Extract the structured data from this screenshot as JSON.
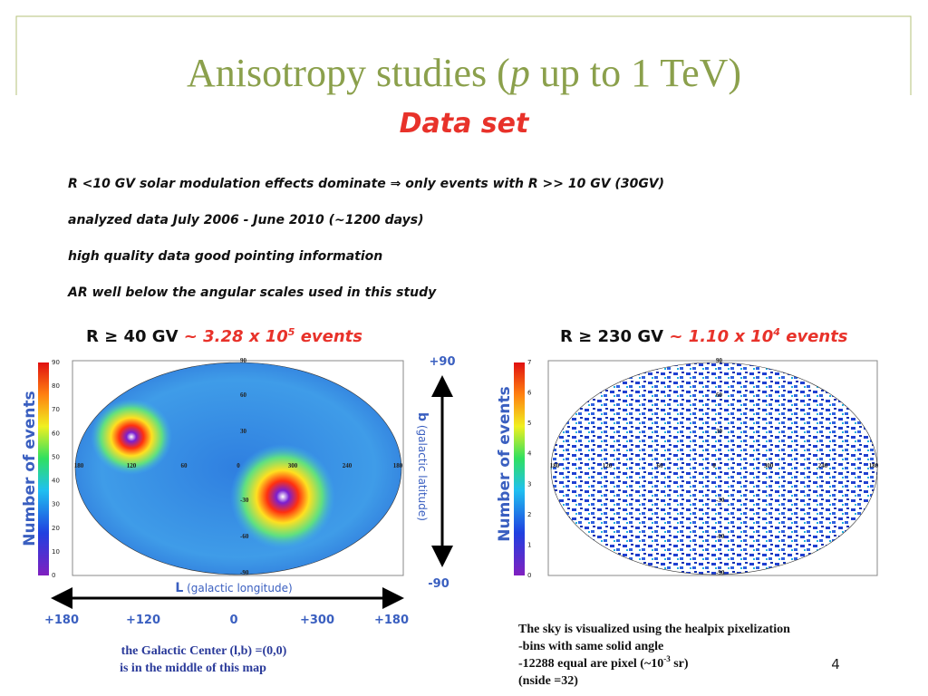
{
  "header": {
    "title": [
      "Anisotropy studies (",
      "p",
      " up to 1 TeV)"
    ],
    "subtitle": "Data set"
  },
  "bullets": [
    "R <10 GV solar modulation effects dominate ⇒ only events with R >>  10 GV (30GV)",
    "analyzed data July 2006 - June 2010 (~1200 days)",
    "high quality data good pointing information",
    "AR well below the angular scales used in this study"
  ],
  "left_map": {
    "heading": [
      "R ≥ 40 GV",
      "~",
      "3.28 x 10",
      "5",
      "events"
    ],
    "colorbar_label": "Number of events",
    "colorbar_ticks": [
      "0",
      "10",
      "20",
      "30",
      "40",
      "50",
      "60",
      "70",
      "80",
      "90"
    ],
    "lat_labels": [
      "90",
      "60",
      "30",
      "-30",
      "-60",
      "-90"
    ],
    "lon_labels": [
      "180",
      "120",
      "60",
      "0",
      "300",
      "240",
      "180"
    ]
  },
  "right_map": {
    "heading": [
      "R ≥ 230 GV",
      "~",
      "1.10 x 10",
      "4",
      "events"
    ],
    "colorbar_label": "Number of events",
    "colorbar_ticks": [
      "0",
      "1",
      "2",
      "3",
      "4",
      "5",
      "6",
      "7"
    ],
    "lat_labels": [
      "90",
      "60",
      "30",
      "-30",
      "-60",
      "-90"
    ],
    "lon_labels": [
      "180",
      "120",
      "60",
      "0",
      "300",
      "240",
      "180"
    ]
  },
  "axes": {
    "b_top": "+90",
    "b_label": [
      "b",
      "(galactic latitude)"
    ],
    "b_bottom": "-90",
    "l_label": [
      "L",
      "(galactic longitude)"
    ],
    "l_ticks": [
      "+180",
      "+120",
      "0",
      "+300",
      "+180"
    ]
  },
  "note": [
    "the Galactic Center (l,b) =(0,0)",
    "is in the middle of this map"
  ],
  "footnote": [
    "The sky is visualized using the healpix pixelization",
    "-bins with same solid angle",
    "-12288 equal are pixel (~10",
    "-3",
    " sr)",
    "(nside =32)"
  ],
  "page_number": "4"
}
